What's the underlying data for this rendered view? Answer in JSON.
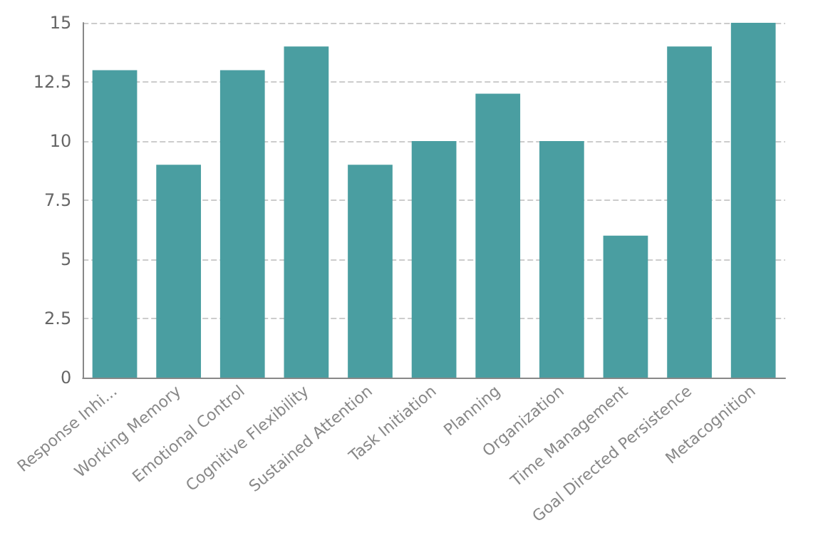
{
  "chart_data": {
    "type": "bar",
    "categories": [
      "Response Inhi...",
      "Working Memory",
      "Emotional Control",
      "Cognitive Flexibility",
      "Sustained Attention",
      "Task Initiation",
      "Planning",
      "Organization",
      "Time Management",
      "Goal Directed Persistence",
      "Metacognition"
    ],
    "values": [
      13,
      9,
      13,
      14,
      9,
      10,
      12,
      10,
      6,
      14,
      15
    ],
    "color": "#4a9ea1",
    "ylim": [
      0,
      15
    ],
    "yticks": [
      0,
      2.5,
      5,
      7.5,
      10,
      12.5,
      15
    ],
    "grid": "y"
  }
}
